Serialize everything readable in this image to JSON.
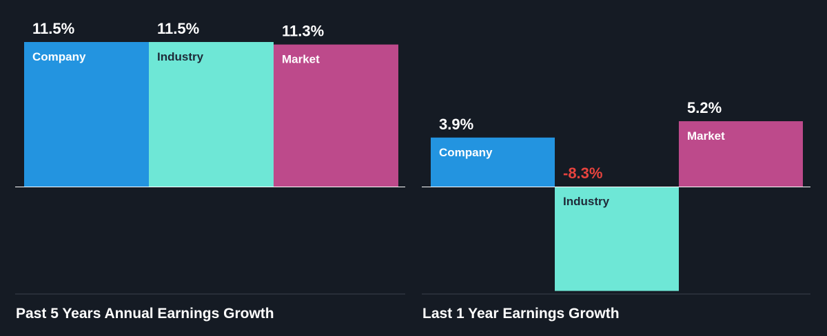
{
  "colors": {
    "background": "#151b24",
    "company": "#2394e0",
    "industry": "#6ee7d6",
    "market": "#bd4a8b",
    "negative_label": "#e8433e",
    "value_label": "#ffffff",
    "bar_label_light": "#ffffff",
    "bar_label_dark": "#1f2a38",
    "axis": "#ffffff",
    "divider": "#3a424d"
  },
  "chart_data": [
    {
      "type": "bar",
      "title": "Past 5 Years Annual Earnings Growth",
      "categories": [
        "Company",
        "Industry",
        "Market"
      ],
      "values": [
        11.5,
        11.5,
        11.3
      ],
      "value_labels": [
        "11.5%",
        "11.5%",
        "11.3%"
      ],
      "ylim": [
        0,
        11.5
      ],
      "grid": false,
      "legend": "none"
    },
    {
      "type": "bar",
      "title": "Last 1 Year Earnings Growth",
      "categories": [
        "Company",
        "Industry",
        "Market"
      ],
      "values": [
        3.9,
        -8.3,
        5.2
      ],
      "value_labels": [
        "3.9%",
        "-8.3%",
        "5.2%"
      ],
      "ylim": [
        -8.3,
        11.5
      ],
      "grid": false,
      "legend": "none"
    }
  ]
}
